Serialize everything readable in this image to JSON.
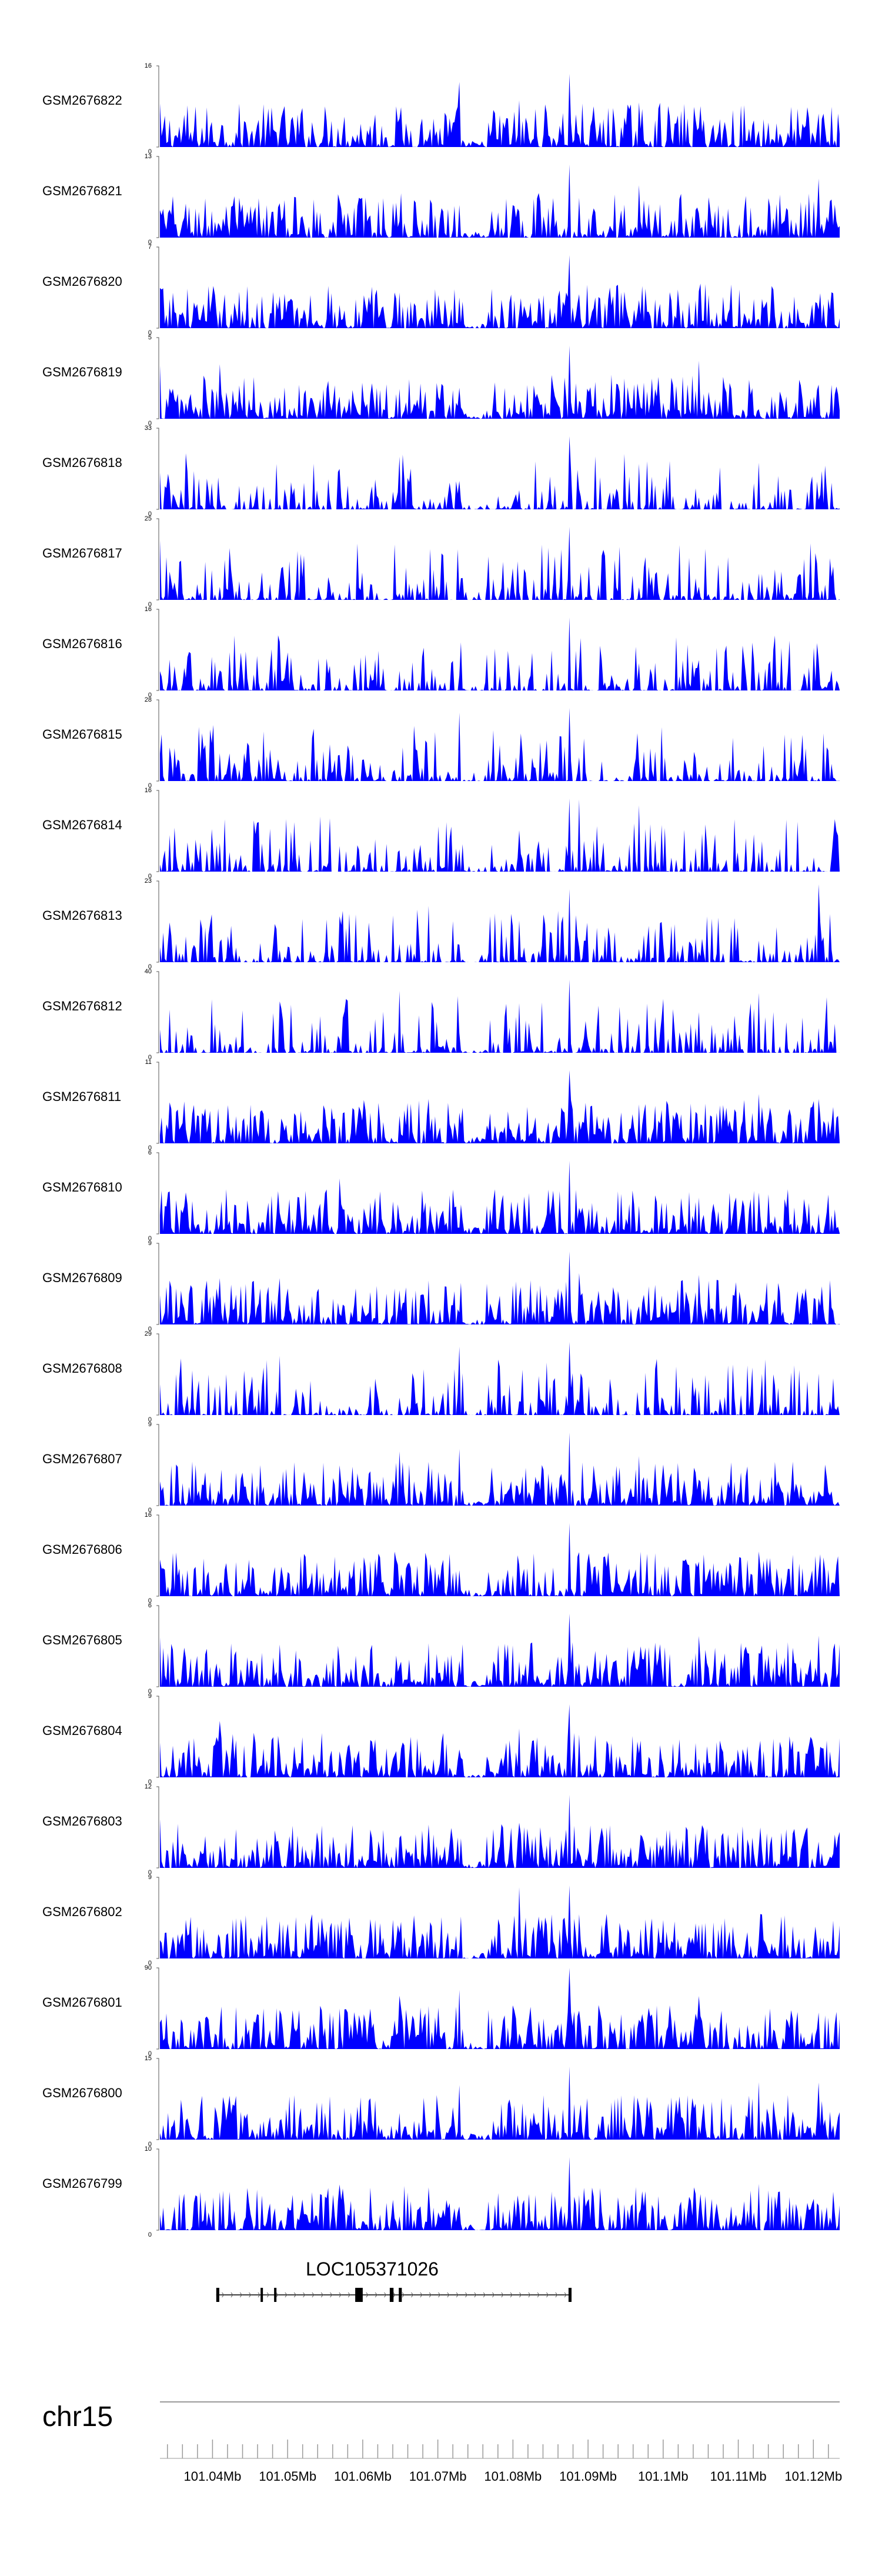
{
  "chart_data": {
    "type": "area",
    "color": "#0000ff",
    "chromosome": "chr15",
    "x_range_mb": [
      101.033,
      101.1235
    ],
    "tracks": [
      {
        "name": "GSM2676822",
        "ymax": 16,
        "ymin": 0
      },
      {
        "name": "GSM2676821",
        "ymax": 13,
        "ymin": 0
      },
      {
        "name": "GSM2676820",
        "ymax": 7,
        "ymin": 0
      },
      {
        "name": "GSM2676819",
        "ymax": 5,
        "ymin": 0
      },
      {
        "name": "GSM2676818",
        "ymax": 33,
        "ymin": 0
      },
      {
        "name": "GSM2676817",
        "ymax": 25,
        "ymin": 0
      },
      {
        "name": "GSM2676816",
        "ymax": 16,
        "ymin": 0
      },
      {
        "name": "GSM2676815",
        "ymax": 28,
        "ymin": 0
      },
      {
        "name": "GSM2676814",
        "ymax": 16,
        "ymin": 0
      },
      {
        "name": "GSM2676813",
        "ymax": 23,
        "ymin": 0
      },
      {
        "name": "GSM2676812",
        "ymax": 40,
        "ymin": 0
      },
      {
        "name": "GSM2676811",
        "ymax": 11,
        "ymin": 0
      },
      {
        "name": "GSM2676810",
        "ymax": 6,
        "ymin": 0
      },
      {
        "name": "GSM2676809",
        "ymax": 9,
        "ymin": 0
      },
      {
        "name": "GSM2676808",
        "ymax": 29,
        "ymin": 0
      },
      {
        "name": "GSM2676807",
        "ymax": 9,
        "ymin": 0
      },
      {
        "name": "GSM2676806",
        "ymax": 16,
        "ymin": 0
      },
      {
        "name": "GSM2676805",
        "ymax": 6,
        "ymin": 0
      },
      {
        "name": "GSM2676804",
        "ymax": 9,
        "ymin": 0
      },
      {
        "name": "GSM2676803",
        "ymax": 12,
        "ymin": 0
      },
      {
        "name": "GSM2676802",
        "ymax": 9,
        "ymin": 0
      },
      {
        "name": "GSM2676801",
        "ymax": 90,
        "ymin": 0
      },
      {
        "name": "GSM2676800",
        "ymax": 15,
        "ymin": 0
      },
      {
        "name": "GSM2676799",
        "ymax": 10,
        "ymin": 0
      }
    ],
    "gene": {
      "name": "LOC105371026",
      "start_mb": 101.0405,
      "end_mb": 101.0878,
      "exons_mb": [
        [
          101.0405,
          101.0409
        ],
        [
          101.0464,
          101.0466
        ],
        [
          101.0482,
          101.0484
        ],
        [
          101.059,
          101.06
        ],
        [
          101.0636,
          101.0641
        ],
        [
          101.0648,
          101.0652
        ],
        [
          101.0874,
          101.0878
        ]
      ]
    },
    "x_axis": {
      "tick_labels": [
        "101.04Mb",
        "101.05Mb",
        "101.06Mb",
        "101.07Mb",
        "101.08Mb",
        "101.09Mb",
        "101.1Mb",
        "101.11Mb",
        "101.12Mb"
      ],
      "tick_values_mb": [
        101.04,
        101.05,
        101.06,
        101.07,
        101.08,
        101.09,
        101.1,
        101.11,
        101.12
      ],
      "minor_step_mb": 0.002
    }
  }
}
